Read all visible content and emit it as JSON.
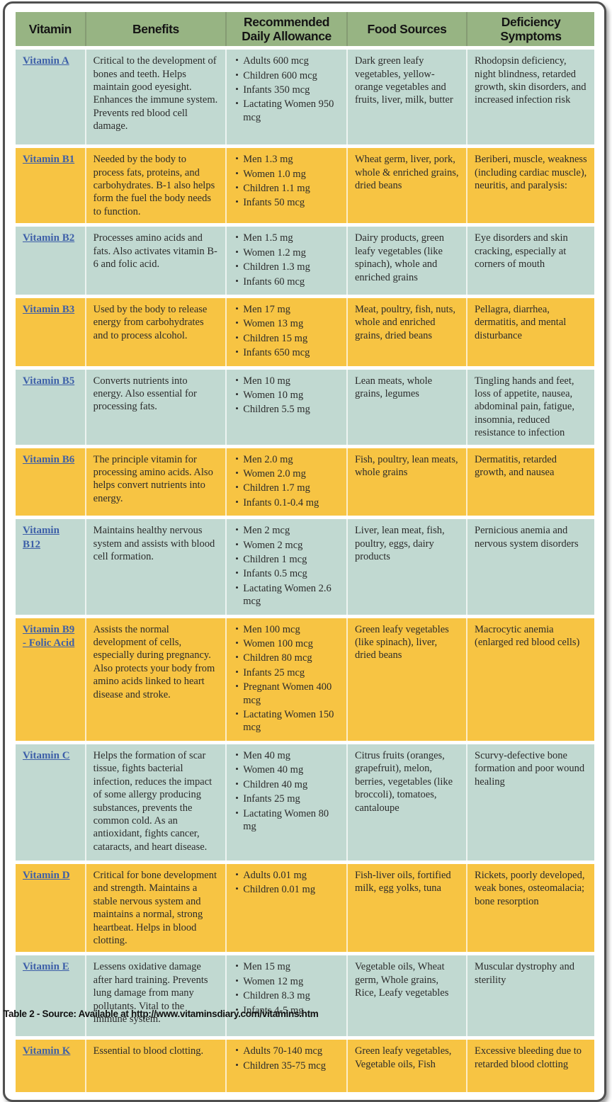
{
  "colors": {
    "header_bg": "#97b483",
    "row_teal": "#c1d9d1",
    "row_orange": "#f7c443",
    "link_blue": "#3d5fa8",
    "frame_border": "#4f4f4f"
  },
  "table": {
    "columns": [
      "Vitamin",
      "Benefits",
      "Recommended Daily Allowance",
      "Food Sources",
      "Deficiency Symptoms"
    ],
    "rows": [
      {
        "vitamin": "Vitamin A",
        "tone": "teal",
        "benefits": "Critical to the development of bones and teeth. Helps maintain good eyesight. Enhances the immune system. Prevents red blood cell damage.",
        "rda": [
          "Adults 600 mcg",
          "Children 600 mcg",
          "Infants 350 mcg",
          "Lactating Women 950 mcg"
        ],
        "food_sources": "Dark green leafy vegetables, yellow-orange vegetables and fruits, liver, milk, butter",
        "deficiency": "Rhodopsin deficiency, night blindness, retarded growth, skin disorders, and increased infection risk"
      },
      {
        "vitamin": "Vitamin B1",
        "tone": "orange",
        "benefits": "Needed by the body to process fats, proteins, and carbohydrates. B-1 also helps form the fuel the body needs to function.",
        "rda": [
          "Men 1.3 mg",
          "Women 1.0 mg",
          "Children 1.1 mg",
          "Infants 50 mcg"
        ],
        "food_sources": "Wheat germ, liver, pork, whole & enriched grains, dried beans",
        "deficiency": "Beriberi, muscle, weakness (including cardiac muscle), neuritis, and paralysis:"
      },
      {
        "vitamin": "Vitamin B2",
        "tone": "teal",
        "benefits": "Processes amino acids and fats. Also activates vitamin B-6 and folic acid.",
        "rda": [
          "Men 1.5 mg",
          "Women 1.2 mg",
          "Children 1.3 mg",
          "Infants 60 mcg"
        ],
        "food_sources": "Dairy products, green leafy vegetables (like spinach), whole and enriched grains",
        "deficiency": "Eye disorders and skin cracking, especially at corners of mouth"
      },
      {
        "vitamin": "Vitamin B3",
        "tone": "orange",
        "benefits": "Used by the body to release energy from carbohydrates and to process alcohol.",
        "rda": [
          "Men 17 mg",
          "Women 13 mg",
          "Children 15 mg",
          "Infants 650 mcg"
        ],
        "food_sources": "Meat, poultry, fish, nuts, whole and enriched grains, dried beans",
        "deficiency": "Pellagra, diarrhea, dermatitis, and mental disturbance"
      },
      {
        "vitamin": "Vitamin B5",
        "tone": "teal",
        "benefits": "Converts nutrients into energy. Also essential for processing fats.",
        "rda": [
          "Men 10 mg",
          "Women 10 mg",
          "Children 5.5 mg"
        ],
        "food_sources": "Lean meats, whole grains, legumes",
        "deficiency": "Tingling hands and feet, loss of appetite, nausea, abdominal pain, fatigue, insomnia, reduced resistance to infection"
      },
      {
        "vitamin": "Vitamin B6",
        "tone": "orange",
        "benefits": "The principle vitamin for processing amino acids. Also helps convert nutrients into energy.",
        "rda": [
          "Men 2.0 mg",
          "Women 2.0 mg",
          "Children 1.7 mg",
          "Infants 0.1-0.4 mg"
        ],
        "food_sources": "Fish, poultry, lean meats, whole grains",
        "deficiency": "Dermatitis, retarded growth, and nausea"
      },
      {
        "vitamin": "Vitamin B12",
        "tone": "teal",
        "benefits": "Maintains healthy nervous system and assists with blood cell formation.",
        "rda": [
          "Men 2 mcg",
          "Women 2 mcg",
          "Children 1 mcg",
          "Infants 0.5 mcg",
          "Lactating Women 2.6 mcg"
        ],
        "food_sources": "Liver, lean meat, fish, poultry, eggs, dairy products",
        "deficiency": "Pernicious anemia and nervous system disorders"
      },
      {
        "vitamin": "Vitamin B9 - Folic Acid",
        "tone": "orange",
        "benefits": "Assists the normal development of cells, especially during pregnancy. Also protects your body from amino acids linked to heart disease and stroke.",
        "rda": [
          "Men 100 mcg",
          "Women 100 mcg",
          "Children 80 mcg",
          "Infants 25 mcg",
          "Pregnant Women 400 mcg",
          "Lactating Women 150 mcg"
        ],
        "food_sources": "Green leafy vegetables (like spinach), liver, dried beans",
        "deficiency": "Macrocytic anemia (enlarged red blood cells)"
      },
      {
        "vitamin": "Vitamin C",
        "tone": "teal",
        "benefits": "Helps the formation of scar tissue, fights bacterial infection, reduces the impact of some allergy producing substances, prevents the common cold. As an antioxidant, fights cancer, cataracts, and heart disease.",
        "rda": [
          "Men 40 mg",
          "Women 40 mg",
          "Children 40 mg",
          "Infants 25 mg",
          "Lactating Women 80 mg"
        ],
        "food_sources": "Citrus fruits (oranges, grapefruit), melon, berries, vegetables (like broccoli), tomatoes, cantaloupe",
        "deficiency": "Scurvy-defective bone formation and poor wound healing"
      },
      {
        "vitamin": "Vitamin D",
        "tone": "orange",
        "benefits": "Critical for bone development and strength. Maintains a stable nervous system and maintains a normal, strong heartbeat. Helps in blood clotting.",
        "rda": [
          "Adults 0.01 mg",
          "Children 0.01 mg"
        ],
        "food_sources": "Fish-liver oils, fortified milk, egg yolks, tuna",
        "deficiency": "Rickets, poorly developed, weak bones, osteomalacia; bone resorption"
      },
      {
        "vitamin": "Vitamin E",
        "tone": "teal",
        "benefits": "Lessens oxidative damage after hard training. Prevents lung damage from many pollutants. Vital to the immune system.",
        "rda": [
          "Men 15 mg",
          "Women 12 mg",
          "Children 8.3 mg",
          "Infants 4-5 mg"
        ],
        "food_sources": "Vegetable oils, Wheat germ, Whole grains, Rice, Leafy vegetables",
        "deficiency": "Muscular dystrophy and sterility"
      },
      {
        "vitamin": "Vitamin K",
        "tone": "orange",
        "benefits": "Essential to blood clotting.",
        "rda": [
          "Adults 70-140 mcg",
          "Children 35-75 mcg"
        ],
        "food_sources": "Green leafy vegetables, Vegetable oils, Fish",
        "deficiency": "Excessive bleeding due to retarded blood clotting"
      }
    ],
    "caption": "Table 2 - Source: Available at http://www.vitaminsdiary.com/vitamins.htm"
  }
}
